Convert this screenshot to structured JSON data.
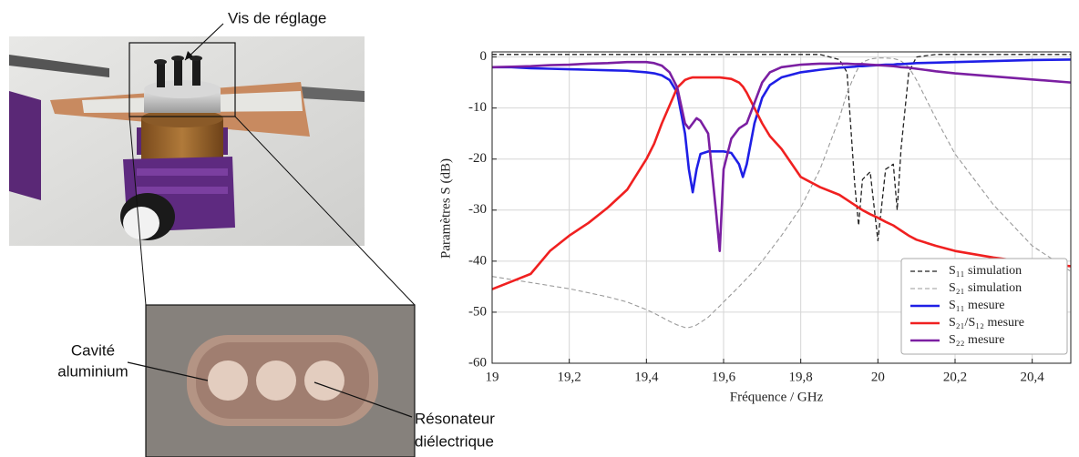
{
  "photo_labels": {
    "screw": "Vis de réglage",
    "cavity": [
      "Cavité",
      "aluminium"
    ],
    "resonator": [
      "Résonateur",
      "diélectrique"
    ]
  },
  "chart_data": {
    "type": "line",
    "xlabel": "Fréquence / GHz",
    "ylabel": "Paramètres S (dB)",
    "xlim": [
      19,
      20.5
    ],
    "ylim": [
      -60,
      1
    ],
    "xticks": [
      19,
      {
        "value": 19.2,
        "label": "19,2"
      },
      {
        "value": 19.4,
        "label": "19,4"
      },
      {
        "value": 19.6,
        "label": "19,6"
      },
      {
        "value": 19.8,
        "label": "19,8"
      },
      20,
      {
        "value": 20.2,
        "label": "20,2"
      },
      {
        "value": 20.4,
        "label": "20,4"
      }
    ],
    "yticks": [
      0,
      -10,
      -20,
      -30,
      -40,
      -50,
      -60
    ],
    "grid": true,
    "legend": "lower right",
    "x": [
      19,
      19.05,
      19.1,
      19.15,
      19.2,
      19.25,
      19.3,
      19.35,
      19.4,
      19.42,
      19.44,
      19.46,
      19.48,
      19.5,
      19.51,
      19.52,
      19.53,
      19.54,
      19.56,
      19.58,
      19.59,
      19.6,
      19.62,
      19.64,
      19.65,
      19.66,
      19.68,
      19.7,
      19.72,
      19.75,
      19.8,
      19.85,
      19.9,
      19.92,
      19.94,
      19.95,
      19.96,
      19.98,
      20,
      20.02,
      20.04,
      20.05,
      20.06,
      20.08,
      20.1,
      20.15,
      20.2,
      20.3,
      20.4,
      20.5
    ],
    "series": [
      {
        "name": "S₁₁ simulation",
        "color": "#222222",
        "dash": "5,3",
        "width": 1.3,
        "values": [
          0.5,
          0.5,
          0.5,
          0.5,
          0.5,
          0.5,
          0.5,
          0.5,
          0.5,
          0.5,
          0.5,
          0.5,
          0.5,
          0.5,
          0.5,
          0.5,
          0.5,
          0.5,
          0.5,
          0.5,
          0.5,
          0.5,
          0.5,
          0.5,
          0.5,
          0.5,
          0.5,
          0.5,
          0.5,
          0.5,
          0.5,
          0.5,
          -0.5,
          -3,
          -25,
          -33,
          -24,
          -22.5,
          -36,
          -22,
          -21,
          -30,
          -18,
          -3,
          0,
          0.5,
          0.5,
          0.5,
          0.5,
          0.5
        ]
      },
      {
        "name": "S₂₁ simulation",
        "color": "#9a9a9a",
        "dash": "5,3",
        "width": 1.1,
        "values": [
          -43,
          -43.6,
          -44.2,
          -44.8,
          -45.4,
          -46.2,
          -47,
          -48,
          -49.5,
          -50.2,
          -51,
          -51.8,
          -52.5,
          -53,
          -53,
          -52.8,
          -52.5,
          -52,
          -51,
          -49.5,
          -48.8,
          -48,
          -46.5,
          -45,
          -44.2,
          -43.4,
          -41.8,
          -40,
          -38,
          -35,
          -29.5,
          -22,
          -12,
          -7,
          -3.5,
          -2,
          -1,
          -0.4,
          -0.2,
          -0.2,
          -0.3,
          -0.5,
          -0.8,
          -2,
          -4.5,
          -12,
          -19,
          -29,
          -37,
          -42
        ]
      },
      {
        "name": "S₁₁ mesure",
        "color": "#1f1fe6",
        "width": 2.6,
        "values": [
          -2,
          -2,
          -2.2,
          -2.3,
          -2.4,
          -2.5,
          -2.6,
          -2.7,
          -3,
          -3.2,
          -3.6,
          -4.5,
          -7,
          -15,
          -22,
          -26.5,
          -22,
          -19,
          -18.5,
          -18.5,
          -18.5,
          -18.5,
          -18.8,
          -21,
          -23.5,
          -21,
          -13,
          -8,
          -5.5,
          -4,
          -3,
          -2.5,
          -2.1,
          -2,
          -1.9,
          -1.8,
          -1.8,
          -1.7,
          -1.6,
          -1.5,
          -1.5,
          -1.4,
          -1.4,
          -1.3,
          -1.2,
          -1.1,
          -1,
          -0.8,
          -0.6,
          -0.5
        ]
      },
      {
        "name": "S₂₁/S₁₂ mesure",
        "color": "#f02020",
        "width": 2.6,
        "values": [
          -45.5,
          -44,
          -42.5,
          -38,
          -35,
          -32.5,
          -29.5,
          -26,
          -20,
          -17,
          -13,
          -9.5,
          -6,
          -4.5,
          -4.2,
          -4,
          -4,
          -4,
          -4,
          -4,
          -4,
          -4.1,
          -4.3,
          -5,
          -5.8,
          -7,
          -10,
          -13,
          -15.5,
          -18,
          -23.5,
          -25.5,
          -27,
          -28,
          -29,
          -29.5,
          -30,
          -30.8,
          -31.5,
          -32.3,
          -33,
          -33.5,
          -34,
          -35,
          -35.8,
          -37,
          -38,
          -39.3,
          -40.3,
          -41
        ]
      },
      {
        "name": "S₂₂ mesure",
        "color": "#7b1fa2",
        "width": 2.6,
        "values": [
          -2,
          -1.9,
          -1.8,
          -1.6,
          -1.5,
          -1.3,
          -1.2,
          -1,
          -1,
          -1.2,
          -1.7,
          -3,
          -6,
          -13,
          -14,
          -13,
          -12,
          -12.5,
          -15,
          -30,
          -38,
          -22,
          -16,
          -14,
          -13.5,
          -13,
          -9,
          -5,
          -3,
          -2,
          -1.5,
          -1.3,
          -1.3,
          -1.3,
          -1.4,
          -1.4,
          -1.4,
          -1.5,
          -1.6,
          -1.7,
          -1.8,
          -1.9,
          -2,
          -2.1,
          -2.3,
          -2.8,
          -3.2,
          -3.8,
          -4.4,
          -5
        ]
      }
    ]
  }
}
